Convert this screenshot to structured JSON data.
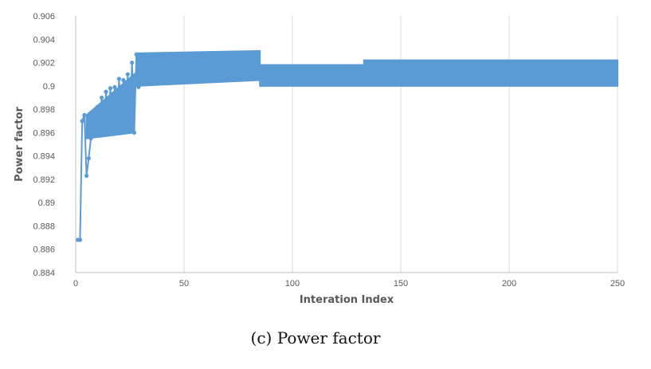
{
  "colors": {
    "series": "#5B9BD5",
    "grid": "#d9d9d9",
    "axis": "#bfbfbf"
  },
  "caption": "(c) Power factor",
  "chart_data": {
    "type": "line",
    "xlabel": "Interation Index",
    "ylabel": "Power factor",
    "xlim": [
      0,
      250
    ],
    "ylim": [
      0.884,
      0.906
    ],
    "xticks": [
      0,
      50,
      100,
      150,
      200,
      250
    ],
    "yticks": [
      "0.884",
      "0.886",
      "0.888",
      "0.89",
      "0.892",
      "0.894",
      "0.896",
      "0.898",
      "0.9",
      "0.902",
      "0.904",
      "0.906"
    ],
    "grid": "vertical",
    "series": [
      {
        "x": [
          1,
          2,
          3,
          4,
          5,
          6,
          7,
          8,
          9,
          10,
          11,
          12,
          13,
          14,
          15,
          16,
          17,
          18,
          19,
          20,
          21,
          22,
          23,
          24,
          25,
          26,
          27,
          28,
          29,
          30
        ],
        "y": [
          0.8868,
          0.8868,
          0.897,
          0.8975,
          0.8923,
          0.8938,
          0.8955,
          0.8978,
          0.896,
          0.8982,
          0.8965,
          0.899,
          0.8962,
          0.8995,
          0.8961,
          0.8998,
          0.8962,
          0.8999,
          0.8961,
          0.9006,
          0.8962,
          0.9005,
          0.8961,
          0.901,
          0.8961,
          0.902,
          0.896,
          0.9027,
          0.8999,
          0.9022
        ]
      }
    ],
    "bands": [
      {
        "from": 5,
        "to": 27,
        "low": [
          0.8955,
          0.896
        ],
        "high": [
          0.8975,
          0.901
        ]
      },
      {
        "from": 28,
        "to": 85,
        "low": [
          0.9,
          0.9005
        ],
        "high": [
          0.9028,
          0.903
        ]
      },
      {
        "from": 85,
        "to": 133,
        "low": [
          0.9,
          0.9
        ],
        "high": [
          0.9018,
          0.9018
        ]
      },
      {
        "from": 133,
        "to": 250,
        "low": [
          0.9,
          0.9
        ],
        "high": [
          0.9022,
          0.9022
        ]
      }
    ]
  }
}
